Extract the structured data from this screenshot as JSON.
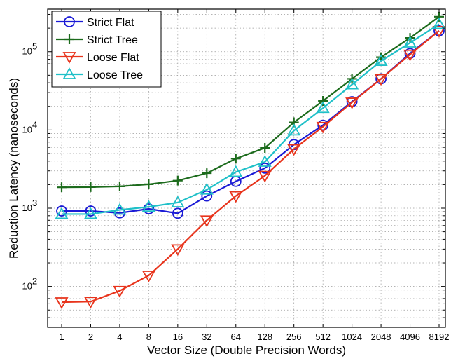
{
  "chart_data": {
    "type": "line",
    "title": "",
    "xlabel": "Vector Size (Double Precision Words)",
    "ylabel": "Reduction Latency (nanoseconds)",
    "x_scale": "log2",
    "y_scale": "log10",
    "categories": [
      "1",
      "2",
      "4",
      "8",
      "16",
      "32",
      "64",
      "128",
      "256",
      "512",
      "1024",
      "2048",
      "4096",
      "8192"
    ],
    "ylim": [
      30,
      350000
    ],
    "y_ticks": [
      {
        "value": 100,
        "base": "10",
        "exp": "2"
      },
      {
        "value": 1000,
        "base": "10",
        "exp": "3"
      },
      {
        "value": 10000,
        "base": "10",
        "exp": "4"
      },
      {
        "value": 100000,
        "base": "10",
        "exp": "5"
      }
    ],
    "grid": true,
    "legend": "top-left",
    "series": [
      {
        "name": "Strict Flat",
        "color": "#1a1ad6",
        "marker": "circle",
        "values": [
          920,
          920,
          870,
          980,
          860,
          1430,
          2200,
          3250,
          6500,
          11500,
          23000,
          45000,
          95000,
          185000
        ]
      },
      {
        "name": "Strict Tree",
        "color": "#1c6b1c",
        "marker": "plus",
        "values": [
          1850,
          1860,
          1900,
          2020,
          2250,
          2800,
          4300,
          5900,
          12500,
          23500,
          45000,
          85000,
          150000,
          280000
        ]
      },
      {
        "name": "Loose Flat",
        "color": "#e8341c",
        "marker": "triangle-down",
        "values": [
          63,
          64,
          88,
          138,
          300,
          700,
          1430,
          2600,
          5700,
          11000,
          22500,
          45000,
          92000,
          185000
        ]
      },
      {
        "name": "Loose Tree",
        "color": "#1fc0c8",
        "marker": "triangle-up",
        "values": [
          840,
          840,
          950,
          1040,
          1180,
          1720,
          2900,
          3900,
          9800,
          19000,
          38000,
          76000,
          130000,
          225000
        ]
      }
    ]
  }
}
